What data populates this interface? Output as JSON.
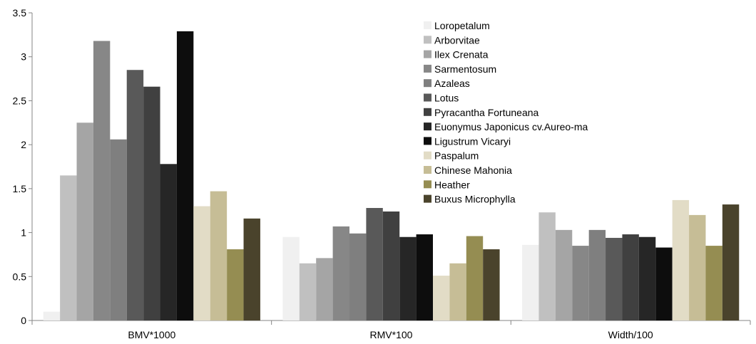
{
  "chart_data": {
    "type": "bar",
    "title": "",
    "xlabel": "",
    "ylabel": "",
    "ylim": [
      0,
      3.5
    ],
    "yticks": [
      0,
      0.5,
      1,
      1.5,
      2,
      2.5,
      3,
      3.5
    ],
    "ytick_labels": [
      "0",
      "0.5",
      "1",
      "1.5",
      "2",
      "2.5",
      "3",
      "3.5"
    ],
    "grid": false,
    "legend_position": "top-center",
    "categories": [
      "BMV*1000",
      "RMV*100",
      "Width/100"
    ],
    "series": [
      {
        "name": "Loropetalum",
        "color": "#f0f0f0",
        "values": [
          0.1,
          0.95,
          0.86
        ]
      },
      {
        "name": "Arborvitae",
        "color": "#c0c0c0",
        "values": [
          1.65,
          0.65,
          1.23
        ]
      },
      {
        "name": "Ilex Crenata",
        "color": "#a5a5a5",
        "values": [
          2.25,
          0.71,
          1.03
        ]
      },
      {
        "name": "Sarmentosum",
        "color": "#878787",
        "values": [
          3.18,
          1.07,
          0.85
        ]
      },
      {
        "name": "Azaleas",
        "color": "#7f7f7f",
        "values": [
          2.06,
          0.99,
          1.03
        ]
      },
      {
        "name": "Lotus",
        "color": "#595959",
        "values": [
          2.85,
          1.28,
          0.94
        ]
      },
      {
        "name": "Pyracantha Fortuneana",
        "color": "#404040",
        "values": [
          2.66,
          1.24,
          0.98
        ]
      },
      {
        "name": "Euonymus Japonicus cv.Aureo-ma",
        "color": "#262626",
        "values": [
          1.78,
          0.95,
          0.95
        ]
      },
      {
        "name": "Ligustrum Vicaryi",
        "color": "#0d0d0d",
        "values": [
          3.29,
          0.98,
          0.83
        ]
      },
      {
        "name": "Paspalum",
        "color": "#e2dcc6",
        "values": [
          1.3,
          0.51,
          1.37
        ]
      },
      {
        "name": "Chinese Mahonia",
        "color": "#c6bd96",
        "values": [
          1.47,
          0.65,
          1.2
        ]
      },
      {
        "name": "Heather",
        "color": "#958d52",
        "values": [
          0.81,
          0.96,
          0.85
        ]
      },
      {
        "name": "Buxus Microphylla",
        "color": "#4a432c",
        "values": [
          1.16,
          0.81,
          1.32
        ]
      }
    ]
  }
}
